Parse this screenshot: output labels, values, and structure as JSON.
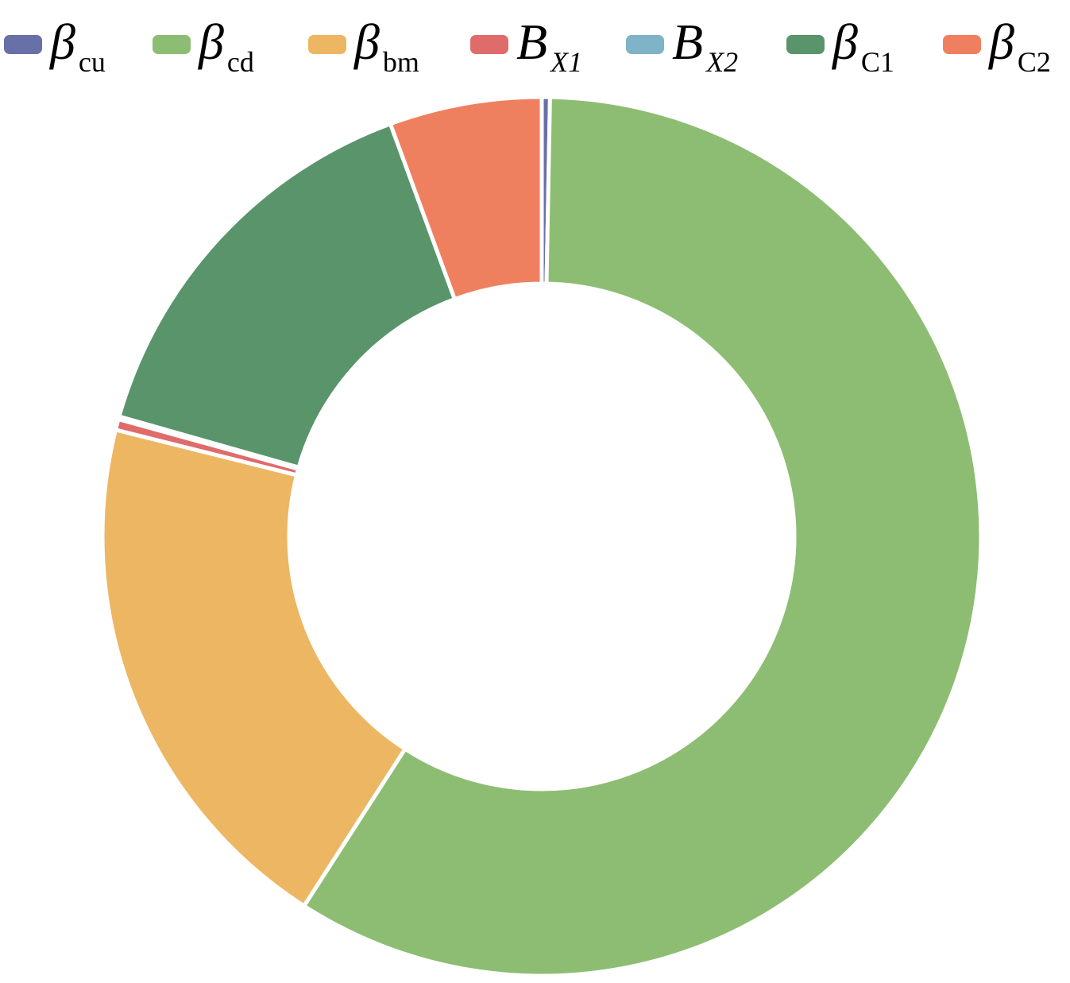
{
  "chart_data": {
    "type": "donut",
    "categories": [
      {
        "symbol": "β",
        "subscript": "cu"
      },
      {
        "symbol": "β",
        "subscript": "cd"
      },
      {
        "symbol": "β",
        "subscript": "bm"
      },
      {
        "symbol": "B",
        "subscript": "X1"
      },
      {
        "symbol": "B",
        "subscript": "X2"
      },
      {
        "symbol": "β",
        "subscript": "C1"
      },
      {
        "symbol": "β",
        "subscript": "C2"
      }
    ],
    "values": [
      0.3,
      58.8,
      19.8,
      0.4,
      0.1,
      15.0,
      5.6
    ],
    "colors": [
      "#6870a8",
      "#8dbd73",
      "#edb662",
      "#e06b6b",
      "#7fb3c8",
      "#5a946b",
      "#ef805f"
    ],
    "legend": "top"
  }
}
